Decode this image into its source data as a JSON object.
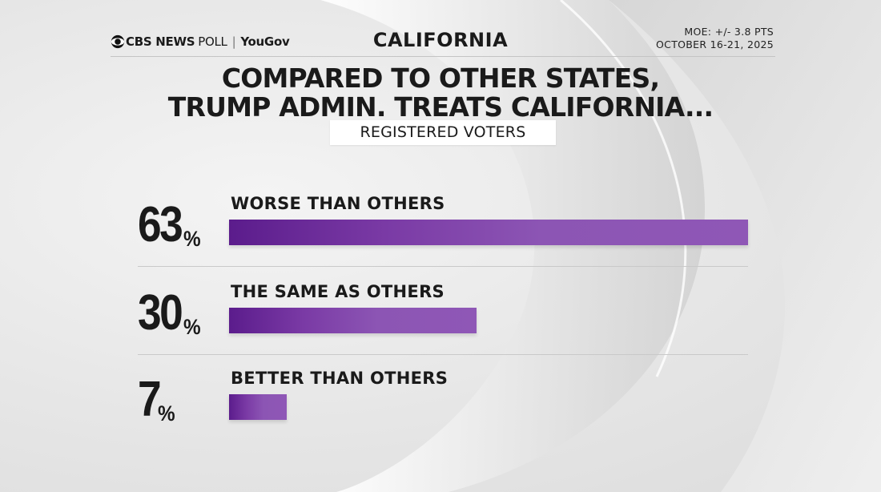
{
  "header": {
    "brand_network": "CBS NEWS",
    "brand_poll": "POLL",
    "brand_partner": "YouGov",
    "state": "CALIFORNIA",
    "moe": "MOE: +/- 3.8 PTS",
    "dates": "OCTOBER 16-21, 2025"
  },
  "title_line1": "COMPARED TO OTHER STATES,",
  "title_line2": "TRUMP ADMIN. TREATS CALIFORNIA...",
  "population": "REGISTERED VOTERS",
  "colors": {
    "bar": "#8f57b6",
    "bar_dark": "#5b1c8c",
    "text": "#1a1a1a"
  },
  "chart_data": {
    "type": "bar",
    "orientation": "horizontal",
    "categories": [
      "WORSE THAN OTHERS",
      "THE SAME AS OTHERS",
      "BETTER THAN OTHERS"
    ],
    "values": [
      63,
      30,
      7
    ],
    "value_labels": [
      "63",
      "30",
      "7"
    ],
    "unit": "%",
    "xlim": [
      0,
      63
    ]
  }
}
